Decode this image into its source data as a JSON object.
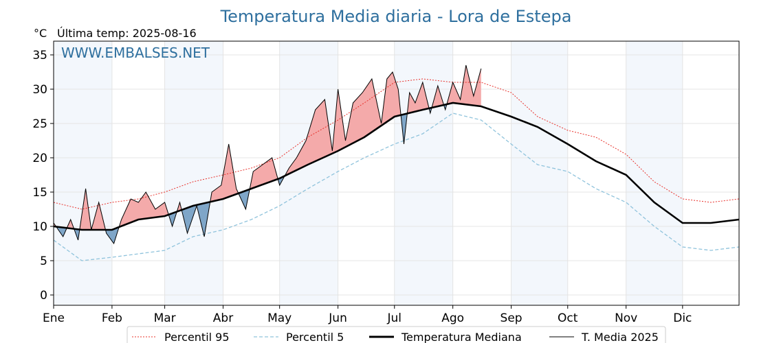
{
  "chart_data": {
    "type": "line",
    "title": "Temperatura Media diaria - Lora de Estepa",
    "unit_label": "°C",
    "last_temp_label": "Última temp: 2025-08-16",
    "watermark": "WWW.EMBALSES.NET",
    "ylim": [
      -1.5,
      37
    ],
    "yticks": [
      0,
      5,
      10,
      15,
      20,
      25,
      30,
      35
    ],
    "months": [
      "Ene",
      "Feb",
      "Mar",
      "Abr",
      "May",
      "Jun",
      "Jul",
      "Ago",
      "Sep",
      "Oct",
      "Nov",
      "Dic"
    ],
    "legend": [
      "Percentil 95",
      "Percentil 5",
      "Temperatura Mediana",
      "T. Media 2025"
    ],
    "grid": true,
    "series": [
      {
        "name": "Percentil 95",
        "day_of_year": [
          1,
          16,
          32,
          46,
          60,
          75,
          91,
          106,
          121,
          136,
          152,
          166,
          182,
          197,
          213,
          228,
          244,
          258,
          274,
          289,
          305,
          320,
          335,
          350,
          365
        ],
        "values": [
          13.5,
          12.5,
          13.5,
          14,
          15,
          16.5,
          17.5,
          18.5,
          20,
          23,
          25.5,
          28,
          31,
          31.5,
          31,
          31,
          29.5,
          26,
          24,
          23,
          20.5,
          16.5,
          14,
          13.5,
          14
        ]
      },
      {
        "name": "Percentil 5",
        "day_of_year": [
          1,
          16,
          32,
          46,
          60,
          75,
          91,
          106,
          121,
          136,
          152,
          166,
          182,
          197,
          213,
          228,
          244,
          258,
          274,
          289,
          305,
          320,
          335,
          350,
          365
        ],
        "values": [
          8,
          5,
          5.5,
          6,
          6.5,
          8.5,
          9.5,
          11,
          13,
          15.5,
          18,
          20,
          22,
          23.5,
          26.5,
          25.5,
          22,
          19,
          18,
          15.5,
          13.5,
          10,
          7,
          6.5,
          7
        ]
      },
      {
        "name": "Temperatura Mediana",
        "day_of_year": [
          1,
          16,
          32,
          46,
          60,
          75,
          91,
          106,
          121,
          136,
          152,
          166,
          182,
          197,
          213,
          228,
          244,
          258,
          274,
          289,
          305,
          320,
          335,
          350,
          365
        ],
        "values": [
          10,
          9.5,
          9.5,
          11,
          11.5,
          13,
          14,
          15.5,
          17,
          19,
          21,
          23,
          26,
          27,
          28,
          27.5,
          26,
          24.5,
          22,
          19.5,
          17.5,
          13.5,
          10.5,
          10.5,
          11
        ]
      },
      {
        "name": "T. Media 2025",
        "day_of_year": [
          1,
          6,
          10,
          14,
          18,
          21,
          25,
          29,
          33,
          37,
          42,
          46,
          50,
          55,
          60,
          64,
          68,
          72,
          77,
          81,
          85,
          90,
          94,
          98,
          103,
          107,
          112,
          117,
          121,
          126,
          130,
          135,
          140,
          145,
          149,
          152,
          156,
          160,
          165,
          170,
          175,
          178,
          181,
          184,
          187,
          190,
          193,
          197,
          201,
          205,
          209,
          213,
          217,
          220,
          224,
          228
        ],
        "values": [
          10.5,
          8.5,
          11,
          8,
          15.5,
          9.5,
          13.5,
          9,
          7.5,
          11,
          14,
          13.5,
          15,
          12.5,
          13.5,
          10,
          13.5,
          9,
          13,
          8.5,
          15,
          16,
          22,
          15.5,
          12.5,
          18,
          19,
          20,
          16,
          18.5,
          20,
          22.5,
          27,
          28.5,
          21,
          30,
          22.5,
          28,
          29.5,
          31.5,
          25,
          31.5,
          32.5,
          30,
          22,
          29.5,
          28,
          31,
          26.5,
          30.5,
          27,
          31,
          28.5,
          33.5,
          29,
          33
        ]
      }
    ]
  }
}
